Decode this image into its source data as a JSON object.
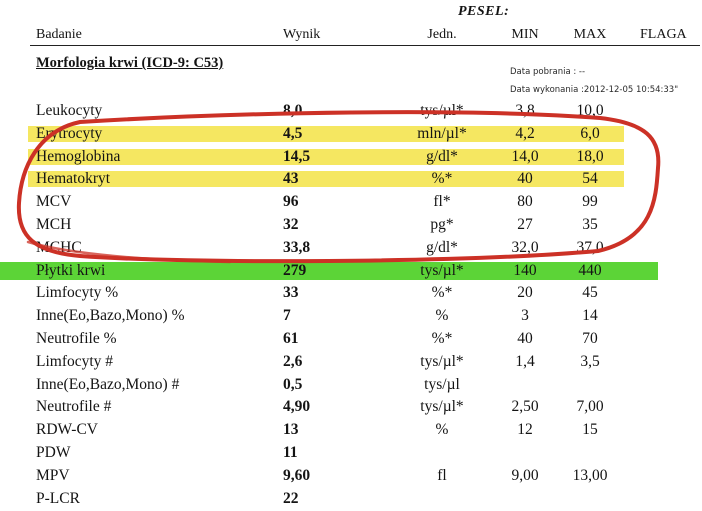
{
  "header": {
    "pesel_label": "PESEL:",
    "columns": [
      "Badanie",
      "Wynik",
      "Jedn.",
      "MIN",
      "MAX",
      "FLAGA"
    ],
    "section_title": "Morfologia krwi (ICD-9: C53)",
    "collection_date": "Data pobrania : --",
    "execution_date": "Data wykonania :2012-12-05 10:54:33\""
  },
  "table": {
    "rows": [
      {
        "name": "Leukocyty",
        "result": "8,0",
        "unit": "tys/µl*",
        "min": "3,8",
        "max": "10,0",
        "highlight": "none"
      },
      {
        "name": "Erytrocyty",
        "result": "4,5",
        "unit": "mln/µl*",
        "min": "4,2",
        "max": "6,0",
        "highlight": "yellow"
      },
      {
        "name": "Hemoglobina",
        "result": "14,5",
        "unit": "g/dl*",
        "min": "14,0",
        "max": "18,0",
        "highlight": "yellow"
      },
      {
        "name": "Hematokryt",
        "result": "43",
        "unit": "%*",
        "min": "40",
        "max": "54",
        "highlight": "yellow"
      },
      {
        "name": "MCV",
        "result": "96",
        "unit": "fl*",
        "min": "80",
        "max": "99",
        "highlight": "none"
      },
      {
        "name": "MCH",
        "result": "32",
        "unit": "pg*",
        "min": "27",
        "max": "35",
        "highlight": "none"
      },
      {
        "name": "MCHC",
        "result": "33,8",
        "unit": "g/dl*",
        "min": "32,0",
        "max": "37,0",
        "highlight": "none"
      },
      {
        "name": "Płytki krwi",
        "result": "279",
        "unit": "tys/µl*",
        "min": "140",
        "max": "440",
        "highlight": "green"
      },
      {
        "name": "Limfocyty %",
        "result": "33",
        "unit": "%*",
        "min": "20",
        "max": "45",
        "highlight": "none"
      },
      {
        "name": "Inne(Eo,Bazo,Mono) %",
        "result": "7",
        "unit": "%",
        "min": "3",
        "max": "14",
        "highlight": "none"
      },
      {
        "name": "Neutrofile %",
        "result": "61",
        "unit": "%*",
        "min": "40",
        "max": "70",
        "highlight": "none"
      },
      {
        "name": "Limfocyty #",
        "result": "2,6",
        "unit": "tys/µl*",
        "min": "1,4",
        "max": "3,5",
        "highlight": "none"
      },
      {
        "name": "Inne(Eo,Bazo,Mono) #",
        "result": "0,5",
        "unit": "tys/µl",
        "min": "",
        "max": "",
        "highlight": "none"
      },
      {
        "name": "Neutrofile #",
        "result": "4,90",
        "unit": "tys/µl*",
        "min": "2,50",
        "max": "7,00",
        "highlight": "none"
      },
      {
        "name": "RDW-CV",
        "result": "13",
        "unit": "%",
        "min": "12",
        "max": "15",
        "highlight": "none"
      },
      {
        "name": "PDW",
        "result": "11",
        "unit": "",
        "min": "",
        "max": "",
        "highlight": "none"
      },
      {
        "name": "MPV",
        "result": "9,60",
        "unit": "fl",
        "min": "9,00",
        "max": "13,00",
        "highlight": "none"
      },
      {
        "name": "P-LCR",
        "result": "22",
        "unit": "",
        "min": "",
        "max": "",
        "highlight": "none"
      }
    ]
  },
  "annotations": {
    "red_circle_rows": "Erytrocyty–MCHC",
    "colors": {
      "highlight_yellow": "#f2e139",
      "highlight_green": "#3fcc14",
      "annotation_red": "#cc3126"
    }
  }
}
